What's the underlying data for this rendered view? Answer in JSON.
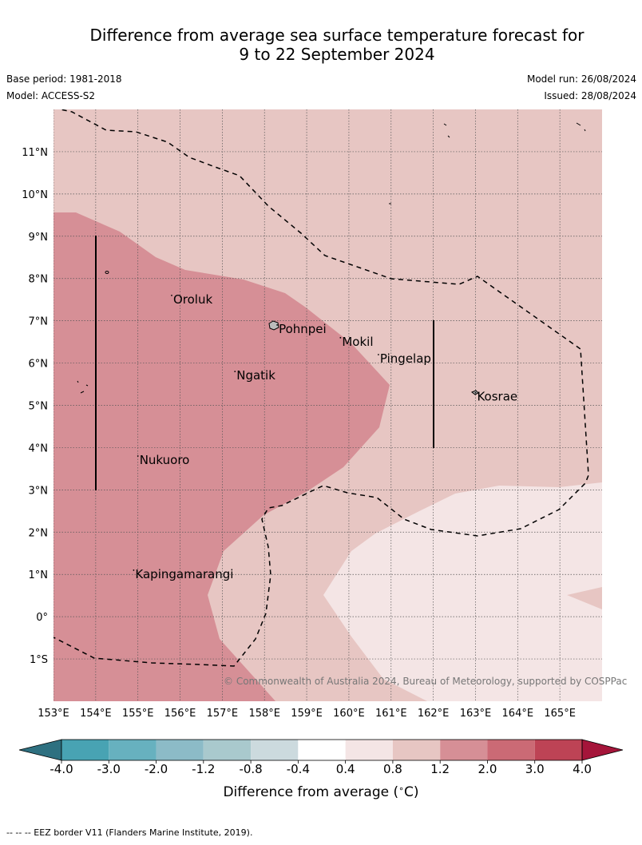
{
  "title_line1": "Difference from average sea surface temperature forecast for",
  "title_line2": "9 to 22 September 2024",
  "meta": {
    "base_period": "Base period: 1981-2018",
    "model": "Model: ACCESS-S2",
    "model_run": "Model run: 26/08/2024",
    "issued": "Issued: 28/08/2024"
  },
  "map": {
    "lon_range": [
      153,
      166
    ],
    "lat_range": [
      -2,
      12
    ],
    "lon_ticks": [
      "153°E",
      "154°E",
      "155°E",
      "156°E",
      "157°E",
      "158°E",
      "159°E",
      "160°E",
      "161°E",
      "162°E",
      "163°E",
      "164°E",
      "165°E"
    ],
    "lat_ticks": [
      "1°S",
      "0°",
      "1°N",
      "2°N",
      "3°N",
      "4°N",
      "5°N",
      "6°N",
      "7°N",
      "8°N",
      "9°N",
      "10°N",
      "11°N"
    ],
    "places": [
      {
        "name": "Oroluk",
        "lon": 155.8,
        "lat": 7.6
      },
      {
        "name": "Pohnpei",
        "lon": 158.3,
        "lat": 6.9
      },
      {
        "name": "Mokil",
        "lon": 159.8,
        "lat": 6.6
      },
      {
        "name": "Pingelap",
        "lon": 160.7,
        "lat": 6.2
      },
      {
        "name": "Ngatik",
        "lon": 157.3,
        "lat": 5.8
      },
      {
        "name": "Kosrae",
        "lon": 163.0,
        "lat": 5.3
      },
      {
        "name": "Nukuoro",
        "lon": 155.0,
        "lat": 3.8
      },
      {
        "name": "Kapingamarangi",
        "lon": 154.9,
        "lat": 1.1
      }
    ],
    "copyright": "© Commonwealth of Australia 2024, Bureau of Meteorology, supported by COSPPac"
  },
  "colorbar": {
    "ticks": [
      "-4.0",
      "-3.0",
      "-2.0",
      "-1.2",
      "-0.8",
      "-0.4",
      "0.4",
      "0.8",
      "1.2",
      "2.0",
      "3.0",
      "4.0"
    ],
    "colors": [
      "#48a3b3",
      "#67b1bf",
      "#8cbbc7",
      "#a9c9cd",
      "#ccdade",
      "#ffffff",
      "#f4e5e5",
      "#e7c6c3",
      "#d68f96",
      "#cb6a75",
      "#bd4355"
    ],
    "under_color": "#2e7080",
    "over_color": "#a5153a",
    "label": "Difference from average ($^\\circ$C)"
  },
  "footer": "-- -- -- EEZ border V11 (Flanders Marine Institute, 2019)."
}
